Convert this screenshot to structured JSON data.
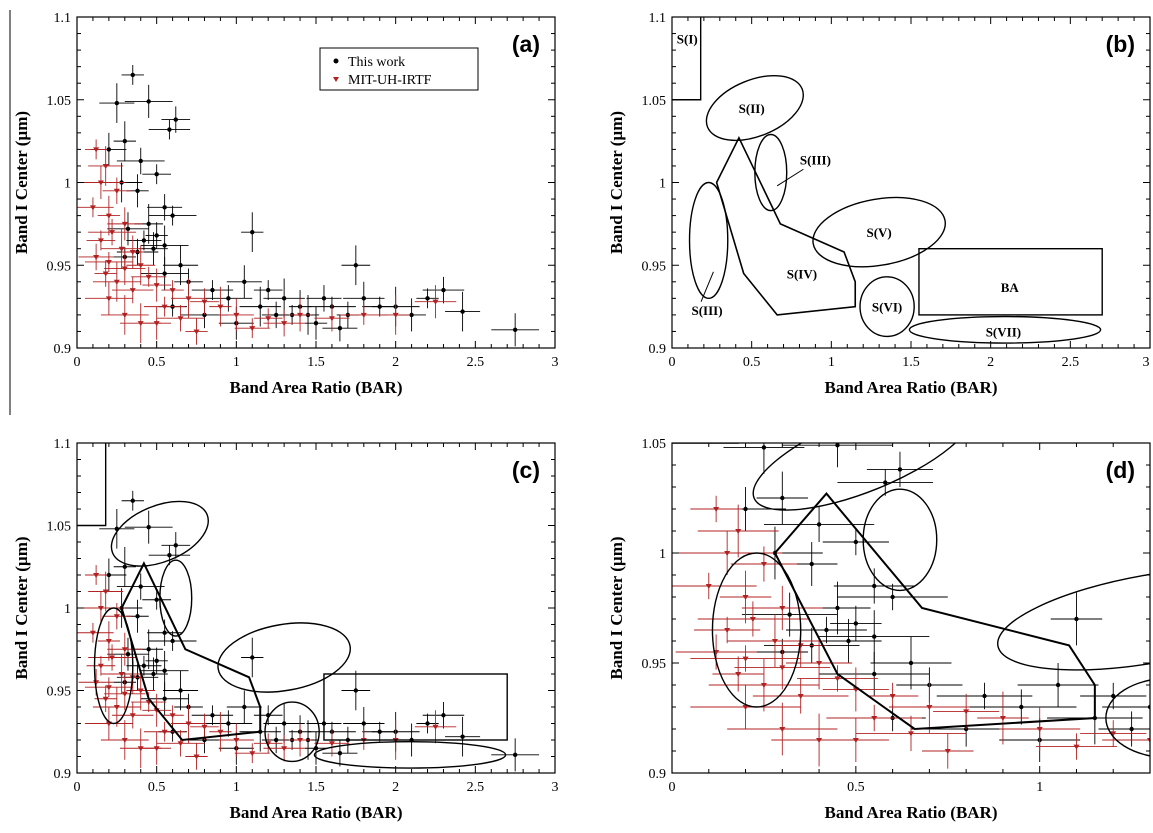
{
  "chart_data": [
    {
      "id": "a",
      "type": "scatter",
      "panel_label": "(a)",
      "xlabel": "Band Area Ratio (BAR)",
      "ylabel": "Band I Center (µm)",
      "xlim": [
        0,
        3
      ],
      "ylim": [
        0.9,
        1.1
      ],
      "xticks": [
        "0",
        "0.5",
        "1",
        "1.5",
        "2",
        "2.5",
        "3"
      ],
      "yticks": [
        "0.9",
        "0.95",
        "1",
        "1.05",
        "1.1"
      ],
      "legend": {
        "placement": "top-right",
        "entries": [
          "This work",
          "MIT-UH-IRTF"
        ]
      },
      "series": [
        {
          "name": "This work",
          "color": "#000000",
          "points": [
            [
              0.35,
              1.065
            ],
            [
              0.25,
              1.048
            ],
            [
              0.45,
              1.049
            ],
            [
              0.62,
              1.038
            ],
            [
              0.58,
              1.032
            ],
            [
              0.3,
              1.025
            ],
            [
              0.2,
              1.02
            ],
            [
              0.4,
              1.013
            ],
            [
              0.5,
              1.005
            ],
            [
              0.28,
              1.0
            ],
            [
              0.38,
              0.995
            ],
            [
              0.55,
              0.985
            ],
            [
              0.6,
              0.98
            ],
            [
              0.45,
              0.975
            ],
            [
              0.32,
              0.972
            ],
            [
              0.5,
              0.968
            ],
            [
              0.42,
              0.965
            ],
            [
              0.55,
              0.962
            ],
            [
              0.48,
              0.96
            ],
            [
              0.38,
              0.958
            ],
            [
              0.3,
              0.955
            ],
            [
              0.65,
              0.95
            ],
            [
              0.55,
              0.945
            ],
            [
              0.7,
              0.94
            ],
            [
              0.85,
              0.935
            ],
            [
              1.1,
              0.97
            ],
            [
              1.05,
              0.94
            ],
            [
              0.95,
              0.93
            ],
            [
              1.2,
              0.935
            ],
            [
              1.3,
              0.93
            ],
            [
              1.4,
              0.925
            ],
            [
              1.55,
              0.93
            ],
            [
              1.6,
              0.925
            ],
            [
              1.75,
              0.95
            ],
            [
              1.8,
              0.93
            ],
            [
              1.7,
              0.92
            ],
            [
              1.9,
              0.925
            ],
            [
              2.0,
              0.925
            ],
            [
              2.1,
              0.92
            ],
            [
              2.3,
              0.935
            ],
            [
              2.2,
              0.93
            ],
            [
              2.42,
              0.922
            ],
            [
              2.75,
              0.911
            ],
            [
              1.25,
              0.92
            ],
            [
              1.35,
              0.92
            ],
            [
              1.45,
              0.92
            ],
            [
              1.0,
              0.915
            ],
            [
              0.8,
              0.92
            ],
            [
              0.6,
              0.925
            ],
            [
              1.15,
              0.925
            ],
            [
              1.5,
              0.915
            ],
            [
              1.65,
              0.912
            ]
          ]
        },
        {
          "name": "MIT-UH-IRTF",
          "color": "#b22222",
          "points": [
            [
              0.12,
              1.02
            ],
            [
              0.18,
              1.01
            ],
            [
              0.15,
              1.0
            ],
            [
              0.25,
              0.995
            ],
            [
              0.1,
              0.985
            ],
            [
              0.2,
              0.98
            ],
            [
              0.3,
              0.975
            ],
            [
              0.22,
              0.97
            ],
            [
              0.15,
              0.965
            ],
            [
              0.28,
              0.96
            ],
            [
              0.35,
              0.958
            ],
            [
              0.12,
              0.955
            ],
            [
              0.2,
              0.952
            ],
            [
              0.4,
              0.95
            ],
            [
              0.3,
              0.948
            ],
            [
              0.18,
              0.945
            ],
            [
              0.45,
              0.943
            ],
            [
              0.25,
              0.94
            ],
            [
              0.5,
              0.938
            ],
            [
              0.35,
              0.935
            ],
            [
              0.6,
              0.935
            ],
            [
              0.7,
              0.93
            ],
            [
              0.2,
              0.93
            ],
            [
              0.8,
              0.928
            ],
            [
              0.55,
              0.925
            ],
            [
              0.9,
              0.925
            ],
            [
              1.0,
              0.92
            ],
            [
              0.65,
              0.918
            ],
            [
              1.2,
              0.918
            ],
            [
              0.4,
              0.915
            ],
            [
              1.4,
              0.92
            ],
            [
              1.6,
              0.918
            ],
            [
              1.8,
              0.92
            ],
            [
              2.0,
              0.92
            ],
            [
              2.25,
              0.928
            ],
            [
              0.75,
              0.91
            ],
            [
              1.1,
              0.912
            ],
            [
              0.3,
              0.92
            ],
            [
              0.5,
              0.915
            ],
            [
              1.3,
              0.915
            ]
          ]
        }
      ]
    },
    {
      "id": "b",
      "type": "diagram",
      "panel_label": "(b)",
      "xlabel": "Band Area Ratio (BAR)",
      "ylabel": "Band I Center (µm)",
      "xlim": [
        0,
        3
      ],
      "ylim": [
        0.9,
        1.1
      ],
      "xticks": [
        "0",
        "0.5",
        "1",
        "1.5",
        "2",
        "2.5",
        "3"
      ],
      "yticks": [
        "0.9",
        "0.95",
        "1",
        "1.05",
        "1.1"
      ],
      "regions": [
        {
          "name": "S(I)",
          "shape": "rect",
          "x0": 0,
          "x1": 0.18,
          "y0": 1.05,
          "y1": 1.1
        },
        {
          "name": "S(II)",
          "shape": "ellipse",
          "cx": 0.52,
          "cy": 1.045,
          "rx": 0.32,
          "ry": 0.017,
          "angle": -22
        },
        {
          "name": "S(III)",
          "shape": "ellipse",
          "cx": 0.62,
          "cy": 1.006,
          "rx": 0.1,
          "ry": 0.023,
          "angle": 0
        },
        {
          "name": "S(III)",
          "shape": "ellipse",
          "cx": 0.23,
          "cy": 0.965,
          "rx": 0.12,
          "ry": 0.035,
          "angle": 0
        },
        {
          "name": "S(IV)",
          "shape": "polygon",
          "points": [
            [
              0.28,
              1.0
            ],
            [
              0.42,
              1.027
            ],
            [
              0.68,
              0.975
            ],
            [
              1.08,
              0.958
            ],
            [
              1.15,
              0.94
            ],
            [
              1.15,
              0.925
            ],
            [
              0.66,
              0.92
            ],
            [
              0.45,
              0.945
            ]
          ]
        },
        {
          "name": "S(V)",
          "shape": "ellipse",
          "cx": 1.3,
          "cy": 0.97,
          "rx": 0.42,
          "ry": 0.02,
          "angle": -10
        },
        {
          "name": "S(VI)",
          "shape": "ellipse",
          "cx": 1.35,
          "cy": 0.925,
          "rx": 0.17,
          "ry": 0.018,
          "angle": 0
        },
        {
          "name": "BA",
          "shape": "rect",
          "x0": 1.55,
          "x1": 2.7,
          "y0": 0.92,
          "y1": 0.96
        },
        {
          "name": "S(VII)",
          "shape": "ellipse",
          "cx": 2.09,
          "cy": 0.911,
          "rx": 0.6,
          "ry": 0.008,
          "angle": 0
        }
      ]
    },
    {
      "id": "c",
      "type": "scatter",
      "panel_label": "(c)",
      "xlabel": "Band Area Ratio (BAR)",
      "ylabel": "Band I Center (µm)",
      "xlim": [
        0,
        3
      ],
      "ylim": [
        0.9,
        1.1
      ],
      "xticks": [
        "0",
        "0.5",
        "1",
        "1.5",
        "2",
        "2.5",
        "3"
      ],
      "yticks": [
        "0.9",
        "0.95",
        "1",
        "1.05",
        "1.1"
      ]
    },
    {
      "id": "d",
      "type": "scatter",
      "panel_label": "(d)",
      "xlabel": "Band Area Ratio (BAR)",
      "ylabel": "Band I Center (µm)",
      "xlim": [
        0,
        1.3
      ],
      "ylim": [
        0.9,
        1.05
      ],
      "xticks": [
        "0",
        "0.5",
        "1"
      ],
      "yticks": [
        "0.9",
        "0.95",
        "1",
        "1.05"
      ]
    }
  ]
}
